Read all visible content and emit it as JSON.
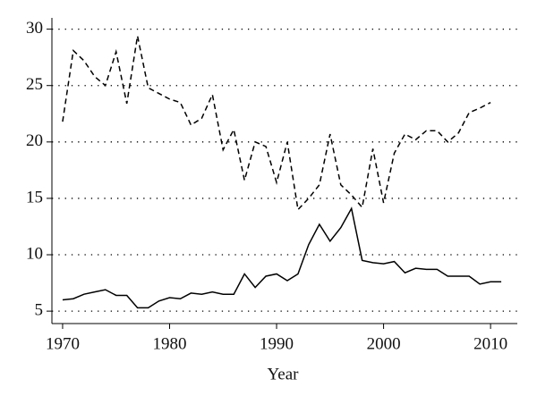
{
  "chart_data": {
    "type": "line",
    "x_label": "Year",
    "x": [
      1970,
      1971,
      1972,
      1973,
      1974,
      1975,
      1976,
      1977,
      1978,
      1979,
      1980,
      1981,
      1982,
      1983,
      1984,
      1985,
      1986,
      1987,
      1988,
      1989,
      1990,
      1991,
      1992,
      1993,
      1994,
      1995,
      1996,
      1997,
      1998,
      1999,
      2000,
      2001,
      2002,
      2003,
      2004,
      2005,
      2006,
      2007,
      2008,
      2009,
      2010,
      2011
    ],
    "series": [
      {
        "color": "#000000",
        "dash": "dashed",
        "values": [
          21.8,
          28.1,
          27.2,
          25.8,
          25.0,
          28.0,
          23.4,
          29.4,
          24.8,
          24.3,
          23.8,
          23.5,
          21.5,
          22.1,
          24.2,
          19.3,
          21.1,
          16.6,
          20.0,
          19.6,
          16.4,
          20.0,
          14.0,
          15.0,
          16.2,
          20.7,
          16.2,
          15.3,
          14.2,
          19.4,
          14.6,
          19.0,
          20.7,
          20.2,
          21.0,
          21.0,
          20.0,
          20.8,
          22.6,
          23.0,
          23.5,
          null
        ]
      },
      {
        "color": "#000000",
        "dash": "solid",
        "values": [
          6.0,
          6.1,
          6.5,
          6.7,
          6.9,
          6.4,
          6.4,
          5.3,
          5.3,
          5.9,
          6.2,
          6.1,
          6.6,
          6.5,
          6.7,
          6.5,
          6.5,
          8.3,
          7.1,
          8.1,
          8.3,
          7.7,
          8.3,
          10.9,
          12.7,
          11.2,
          12.4,
          14.1,
          9.5,
          9.3,
          9.2,
          9.4,
          8.4,
          8.8,
          8.7,
          8.7,
          8.1,
          8.1,
          8.1,
          7.4,
          7.6,
          7.6
        ]
      }
    ],
    "xlim": [
      1969,
      2012.5
    ],
    "xticks": [
      1970,
      1980,
      1990,
      2000,
      2010
    ],
    "ylim": [
      3.9,
      31
    ],
    "yticks": [
      5,
      10,
      15,
      20,
      25,
      30
    ],
    "grid": true,
    "grid_style": "dotted"
  }
}
